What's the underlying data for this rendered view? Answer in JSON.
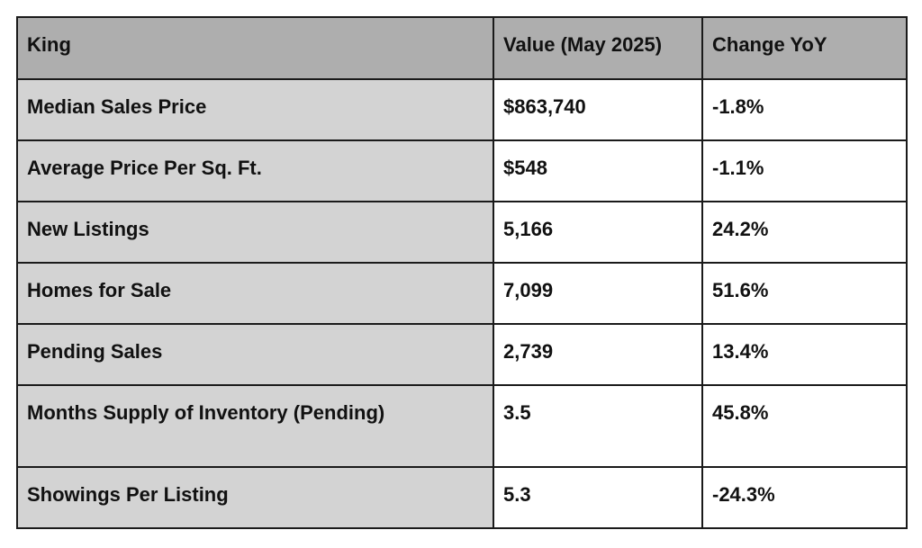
{
  "table": {
    "headers": [
      "King",
      "Value (May 2025)",
      "Change YoY"
    ],
    "rows": [
      {
        "metric": "Median Sales Price",
        "value": "$863,740",
        "change": "-1.8%"
      },
      {
        "metric": "Average Price Per Sq. Ft.",
        "value": "$548",
        "change": "-1.1%"
      },
      {
        "metric": "New Listings",
        "value": "5,166",
        "change": "24.2%"
      },
      {
        "metric": "Homes for Sale",
        "value": "7,099",
        "change": "51.6%"
      },
      {
        "metric": "Pending Sales",
        "value": "2,739",
        "change": "13.4%"
      },
      {
        "metric": "Months Supply of Inventory (Pending)",
        "value": "3.5",
        "change": "45.8%"
      },
      {
        "metric": "Showings Per Listing",
        "value": "5.3",
        "change": "-24.3%"
      }
    ]
  }
}
